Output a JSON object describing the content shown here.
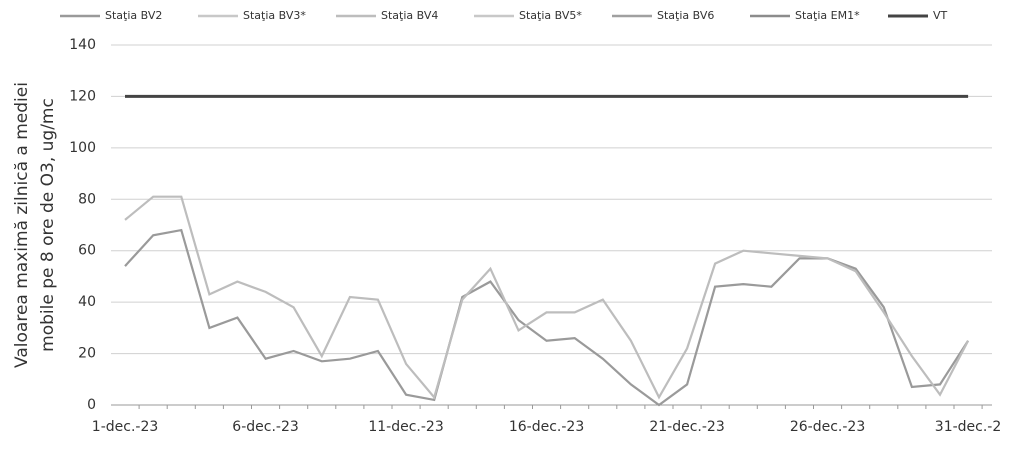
{
  "chart_data": {
    "type": "line",
    "y_label": [
      "Valoarea maximă zilnică a mediei",
      "mobile pe 8 ore de O3, ug/mc"
    ],
    "categories": [
      "1-dec.-23",
      null,
      null,
      null,
      null,
      "6-dec.-23",
      null,
      null,
      null,
      null,
      "11-dec.-23",
      null,
      null,
      null,
      null,
      "16-dec.-23",
      null,
      null,
      null,
      null,
      "21-dec.-23",
      null,
      null,
      null,
      null,
      "26-dec.-23",
      null,
      null,
      null,
      null,
      "31-dec.-2"
    ],
    "series": [
      {
        "name": "Staţia BV2",
        "color": "#9a9a9a",
        "values": [
          54,
          66,
          68,
          30,
          34,
          18,
          21,
          17,
          18,
          21,
          4,
          2,
          42,
          48,
          33,
          25,
          26,
          18,
          8,
          0,
          8,
          46,
          47,
          46,
          57,
          57,
          53,
          38,
          7,
          8,
          25
        ]
      },
      {
        "name": "Staţia BV3*",
        "color": "#c8c8c8",
        "values": [
          null,
          null,
          null,
          null,
          null,
          null,
          null,
          null,
          null,
          null,
          null,
          null,
          null,
          null,
          null,
          null,
          null,
          null,
          null,
          null,
          null,
          null,
          null,
          null,
          null,
          null,
          null,
          null,
          null,
          null,
          null
        ]
      },
      {
        "name": "Staţia BV4",
        "color": "#bdbdbd",
        "values": [
          72,
          81,
          81,
          43,
          48,
          44,
          38,
          19,
          42,
          41,
          16,
          3,
          41,
          53,
          29,
          36,
          36,
          41,
          25,
          3,
          22,
          55,
          60,
          59,
          58,
          57,
          52,
          36,
          19,
          4,
          25
        ]
      },
      {
        "name": "Staţia BV5*",
        "color": "#c8c8c8",
        "values": [
          null,
          null,
          null,
          null,
          null,
          null,
          null,
          null,
          null,
          null,
          null,
          null,
          null,
          null,
          null,
          null,
          null,
          null,
          null,
          null,
          null,
          null,
          null,
          null,
          null,
          null,
          null,
          null,
          null,
          null,
          null
        ]
      },
      {
        "name": "Staţia BV6",
        "color": "#a0a0a0",
        "values": [
          null,
          null,
          null,
          null,
          null,
          null,
          null,
          null,
          null,
          null,
          null,
          null,
          null,
          null,
          null,
          null,
          null,
          null,
          null,
          null,
          null,
          null,
          null,
          null,
          null,
          null,
          null,
          null,
          null,
          null,
          null
        ]
      },
      {
        "name": "Staţia EM1*",
        "color": "#8c8c8c",
        "values": [
          null,
          null,
          null,
          null,
          null,
          null,
          null,
          null,
          null,
          null,
          null,
          null,
          null,
          null,
          null,
          null,
          null,
          null,
          null,
          null,
          null,
          null,
          null,
          null,
          null,
          null,
          null,
          null,
          null,
          null,
          null
        ]
      },
      {
        "name": "VT",
        "color": "#444444",
        "values": [
          120,
          120,
          120,
          120,
          120,
          120,
          120,
          120,
          120,
          120,
          120,
          120,
          120,
          120,
          120,
          120,
          120,
          120,
          120,
          120,
          120,
          120,
          120,
          120,
          120,
          120,
          120,
          120,
          120,
          120,
          120
        ]
      }
    ],
    "ylim": [
      0,
      140
    ],
    "yticks": [
      0,
      20,
      40,
      60,
      80,
      100,
      120,
      140
    ],
    "grid": true
  }
}
